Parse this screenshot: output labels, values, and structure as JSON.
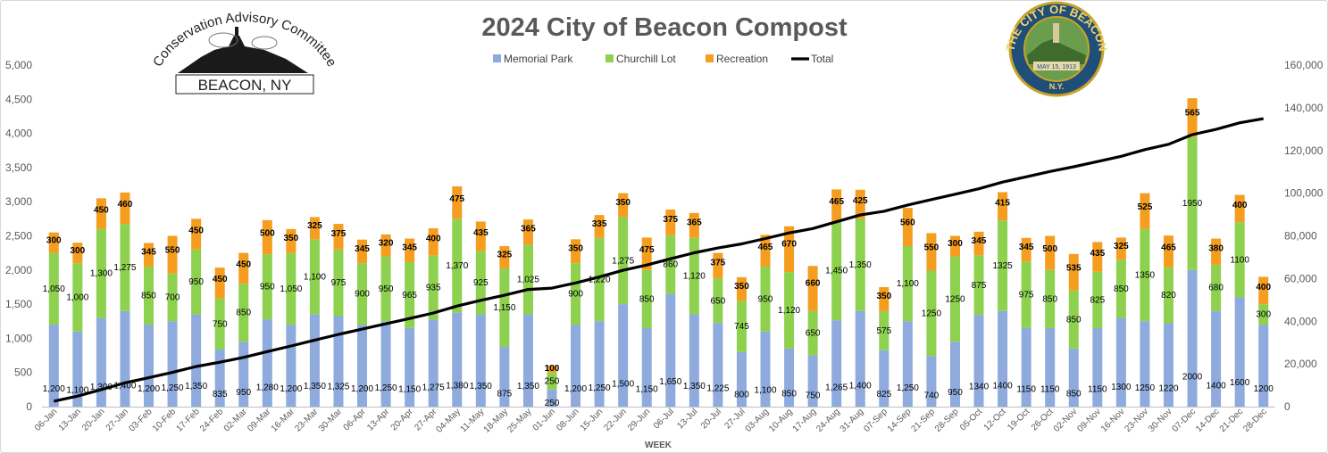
{
  "chart_data": {
    "type": "bar",
    "stacked": true,
    "title": "2024 City of Beacon Compost",
    "xlabel": "WEEK",
    "ylabel": "",
    "ylim": [
      0,
      5000
    ],
    "y_ticks": [
      "0",
      "500",
      "1,000",
      "1,500",
      "2,000",
      "2,500",
      "3,000",
      "3,500",
      "4,000",
      "4,500",
      "5,000"
    ],
    "y2lim": [
      0,
      160000
    ],
    "y2_ticks": [
      "0",
      "20,000",
      "40,000",
      "60,000",
      "80,000",
      "100,000",
      "120,000",
      "140,000",
      "160,000"
    ],
    "grid": false,
    "legend_position": "top",
    "categories": [
      "06-Jan",
      "13-Jan",
      "20-Jan",
      "27-Jan",
      "03-Feb",
      "10-Feb",
      "17-Feb",
      "24-Feb",
      "02-Mar",
      "09-Mar",
      "16-Mar",
      "23-Mar",
      "30-Mar",
      "06-Apr",
      "13-Apr",
      "20-Apr",
      "27-Apr",
      "04-May",
      "11-May",
      "18-May",
      "25-May",
      "01-Jun",
      "08-Jun",
      "15-Jun",
      "22-Jun",
      "29-Jun",
      "06-Jul",
      "13-Jul",
      "20-Jul",
      "27-Jul",
      "03-Aug",
      "10-Aug",
      "17-Aug",
      "24-Aug",
      "31-Aug",
      "07-Sep",
      "14-Sep",
      "21-Sep",
      "28-Sep",
      "05-Oct",
      "12-Oct",
      "19-Oct",
      "26-Oct",
      "02-Nov",
      "09-Nov",
      "16-Nov",
      "23-Nov",
      "30-Nov",
      "07-Dec",
      "14-Dec",
      "21-Dec",
      "28-Dec"
    ],
    "series": [
      {
        "name": "Memorial Park",
        "color": "#8faadc",
        "values": [
          1200,
          1100,
          1300,
          1400,
          1200,
          1250,
          1350,
          835,
          950,
          1280,
          1200,
          1350,
          1325,
          1200,
          1250,
          1150,
          1275,
          1380,
          1350,
          875,
          1350,
          250,
          1200,
          1250,
          1500,
          1150,
          1650,
          1350,
          1225,
          800,
          1100,
          850,
          750,
          1265,
          1400,
          825,
          1250,
          740,
          950,
          1340,
          1400,
          1150,
          1150,
          850,
          1150,
          1300,
          1250,
          1220,
          2000,
          1400,
          1600,
          1200
        ],
        "labels": [
          "1,200",
          "1,100",
          "1,300",
          "1,400",
          "1,200",
          "1,250",
          "1,350",
          "835",
          "950",
          "1,280",
          "1,200",
          "1,350",
          "1,325",
          "1,200",
          "1,250",
          "1,150",
          "1,275",
          "1,380",
          "1,350",
          "875",
          "1,350",
          "250",
          "1,200",
          "1,250",
          "1,500",
          "1,150",
          "1,650",
          "1,350",
          "1,225",
          "800",
          "1,100",
          "850",
          "750",
          "1,265",
          "1,400",
          "825",
          "1,250",
          "740",
          "950",
          "1340",
          "1400",
          "1150",
          "1150",
          "850",
          "1150",
          "1300",
          "1250",
          "1220",
          "2000",
          "1400",
          "1600",
          "1200"
        ]
      },
      {
        "name": "Churchill Lot",
        "color": "#8dd14f",
        "values": [
          1050,
          1000,
          1300,
          1275,
          850,
          700,
          950,
          750,
          850,
          950,
          1050,
          1100,
          975,
          900,
          950,
          965,
          935,
          1370,
          925,
          1150,
          1025,
          250,
          900,
          1220,
          1275,
          850,
          860,
          1120,
          650,
          745,
          950,
          1120,
          650,
          1450,
          1350,
          575,
          1100,
          1250,
          1250,
          875,
          1325,
          975,
          850,
          850,
          825,
          850,
          1350,
          820,
          1950,
          680,
          1100,
          300
        ],
        "labels": [
          "1,050",
          "1,000",
          "1,300",
          "1,275",
          "850",
          "700",
          "950",
          "750",
          "850",
          "950",
          "1,050",
          "1,100",
          "975",
          "900",
          "950",
          "965",
          "935",
          "1,370",
          "925",
          "1,150",
          "1,025",
          "250",
          "900",
          "1,220",
          "1,275",
          "850",
          "860",
          "1,120",
          "650",
          "745",
          "950",
          "1,120",
          "650",
          "1,450",
          "1,350",
          "575",
          "1,100",
          "1250",
          "1250",
          "875",
          "1325",
          "975",
          "850",
          "850",
          "825",
          "850",
          "1350",
          "820",
          "1950",
          "680",
          "1100",
          "300"
        ]
      },
      {
        "name": "Recreation",
        "color": "#f59d1f",
        "values": [
          300,
          300,
          450,
          460,
          345,
          550,
          450,
          450,
          450,
          500,
          350,
          325,
          375,
          345,
          320,
          345,
          400,
          475,
          435,
          325,
          365,
          100,
          350,
          335,
          350,
          475,
          375,
          365,
          375,
          350,
          465,
          670,
          660,
          465,
          425,
          350,
          560,
          550,
          300,
          345,
          415,
          345,
          500,
          535,
          435,
          325,
          525,
          465,
          565,
          380,
          400,
          400
        ],
        "labels": [
          "300",
          "300",
          "450",
          "460",
          "345",
          "550",
          "450",
          "450",
          "450",
          "500",
          "350",
          "325",
          "375",
          "345",
          "320",
          "345",
          "400",
          "475",
          "435",
          "325",
          "365",
          "100",
          "350",
          "335",
          "350",
          "475",
          "375",
          "365",
          "375",
          "350",
          "465",
          "670",
          "660",
          "465",
          "425",
          "350",
          "560",
          "550",
          "300",
          "345",
          "415",
          "345",
          "500",
          "535",
          "435",
          "325",
          "525",
          "465",
          "565",
          "380",
          "400",
          "400"
        ]
      },
      {
        "name": "Total",
        "type": "line",
        "axis": "right",
        "color": "#000000",
        "values": [
          2550,
          4950,
          8000,
          11135,
          13530,
          16030,
          18780,
          20815,
          23065,
          25795,
          28395,
          31170,
          33845,
          36290,
          38810,
          41270,
          43880,
          47105,
          49815,
          52165,
          54905,
          55505,
          57955,
          60760,
          63885,
          66360,
          69245,
          72075,
          74325,
          76220,
          78735,
          81375,
          83435,
          86615,
          89790,
          91540,
          94450,
          96990,
          99490,
          102050,
          105190,
          107660,
          110160,
          112395,
          114805,
          117280,
          120405,
          122910,
          127425,
          129885,
          132985,
          134885
        ]
      }
    ]
  },
  "logos": {
    "left": {
      "line1": "Conservation Advisory Committee",
      "line2": "BEACON, NY"
    },
    "right": {
      "ring_top": "THE CITY OF BEACON",
      "ring_bottom": "N.Y.",
      "seal_date": "MAY 15, 1913"
    }
  }
}
